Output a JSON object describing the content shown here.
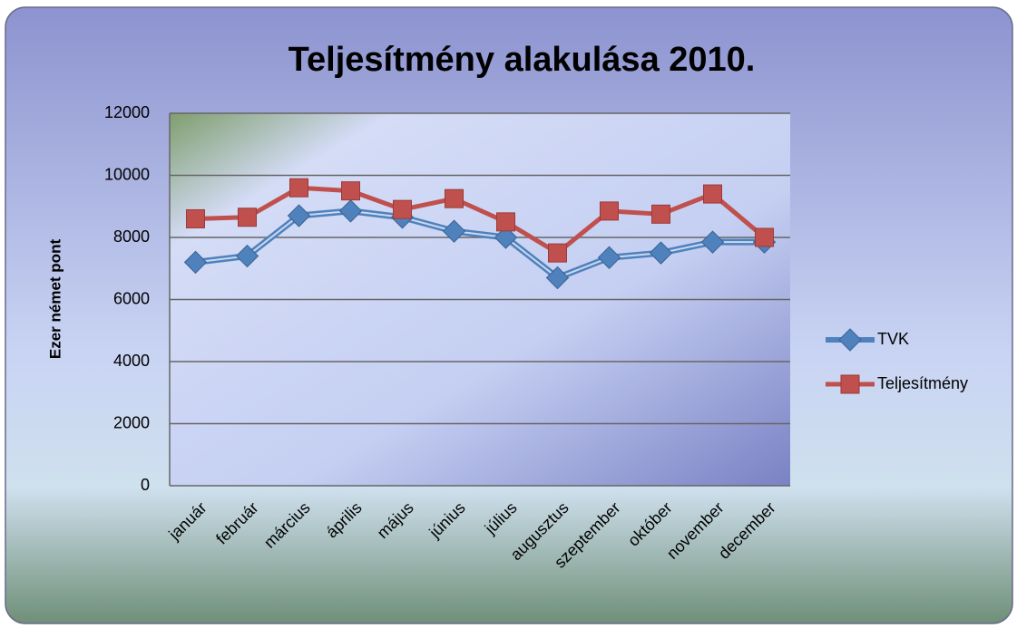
{
  "chart_data": {
    "type": "line",
    "title": "Teljesítmény alakulása 2010.",
    "y_label": "Ezer német pont",
    "categories": [
      "január",
      "február",
      "március",
      "április",
      "május",
      "június",
      "július",
      "augusztus",
      "szeptember",
      "október",
      "november",
      "december"
    ],
    "series": [
      {
        "name": "TVK",
        "color": "#4f81bd",
        "marker": "diamond",
        "values": [
          7200,
          7400,
          8700,
          8850,
          8650,
          8200,
          8000,
          6700,
          7350,
          7500,
          7850,
          7850
        ]
      },
      {
        "name": "Teljesítmény",
        "color": "#c0504d",
        "marker": "square",
        "values": [
          8600,
          8650,
          9600,
          9500,
          8900,
          9250,
          8500,
          7500,
          8850,
          8750,
          9400,
          8000
        ]
      }
    ],
    "ylim": [
      0,
      12000
    ],
    "yticks": [
      0,
      2000,
      4000,
      6000,
      8000,
      10000,
      12000
    ],
    "grid": true,
    "legend": "right"
  }
}
